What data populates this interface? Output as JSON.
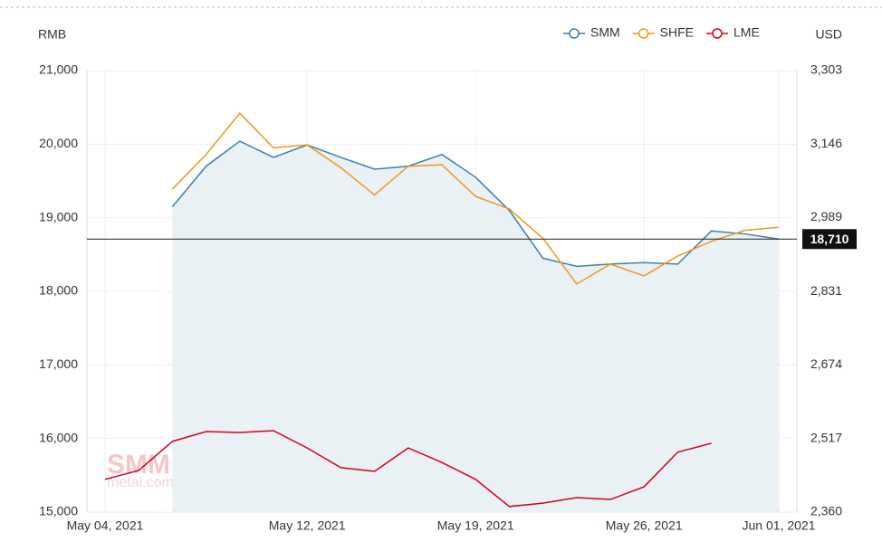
{
  "chart_data": {
    "type": "line",
    "categories": [
      "May 04, 2021",
      null,
      null,
      null,
      null,
      null,
      "May 12, 2021",
      null,
      null,
      null,
      null,
      "May 19, 2021",
      null,
      null,
      null,
      null,
      "May 26, 2021",
      null,
      null,
      null,
      "Jun 01, 2021"
    ],
    "y_label": "RMB",
    "y2_label": "USD",
    "ylim": [
      15000,
      21000
    ],
    "yticks": [
      {
        "value": 15000,
        "label": "15,000"
      },
      {
        "value": 16000,
        "label": "16,000"
      },
      {
        "value": 17000,
        "label": "17,000"
      },
      {
        "value": 18000,
        "label": "18,000"
      },
      {
        "value": 19000,
        "label": "19,000"
      },
      {
        "value": 20000,
        "label": "20,000"
      },
      {
        "value": 21000,
        "label": "21,000"
      }
    ],
    "y2lim": [
      2360,
      3303
    ],
    "y2ticks": [
      {
        "value": 2360,
        "label": "2,360"
      },
      {
        "value": 2517,
        "label": "2,517"
      },
      {
        "value": 2674,
        "label": "2,674"
      },
      {
        "value": 2831,
        "label": "2,831"
      },
      {
        "value": 2989,
        "label": "2,989"
      },
      {
        "value": 3146,
        "label": "3,146"
      },
      {
        "value": 3303,
        "label": "3,303"
      }
    ],
    "grid": true,
    "legend": "top-right",
    "series": [
      {
        "name": "SMM",
        "color": "#3d7fa8",
        "area": true,
        "values": [
          null,
          null,
          19150,
          19700,
          20040,
          19820,
          19990,
          19820,
          19660,
          19700,
          19860,
          19550,
          19100,
          18450,
          18340,
          18370,
          18390,
          18370,
          18820,
          18780,
          18710
        ]
      },
      {
        "name": "SHFE",
        "color": "#f0961e",
        "values": [
          null,
          null,
          19390,
          19860,
          20420,
          19950,
          19990,
          19680,
          19310,
          19700,
          19720,
          19290,
          19120,
          18720,
          18100,
          18370,
          18210,
          18480,
          18680,
          18830,
          18870
        ]
      },
      {
        "name": "LME",
        "color": "#d0021b",
        "axis": "y2",
        "values": [
          2430,
          2449,
          2511,
          2532,
          2530,
          2534,
          2497,
          2455,
          2447,
          2497,
          2466,
          2430,
          2372,
          2379,
          2391,
          2387,
          2414,
          2488,
          2507,
          null,
          null
        ]
      }
    ],
    "current_value": {
      "value": 18710,
      "label": "18,710"
    },
    "watermark": [
      "SMM",
      "metal.com"
    ]
  }
}
